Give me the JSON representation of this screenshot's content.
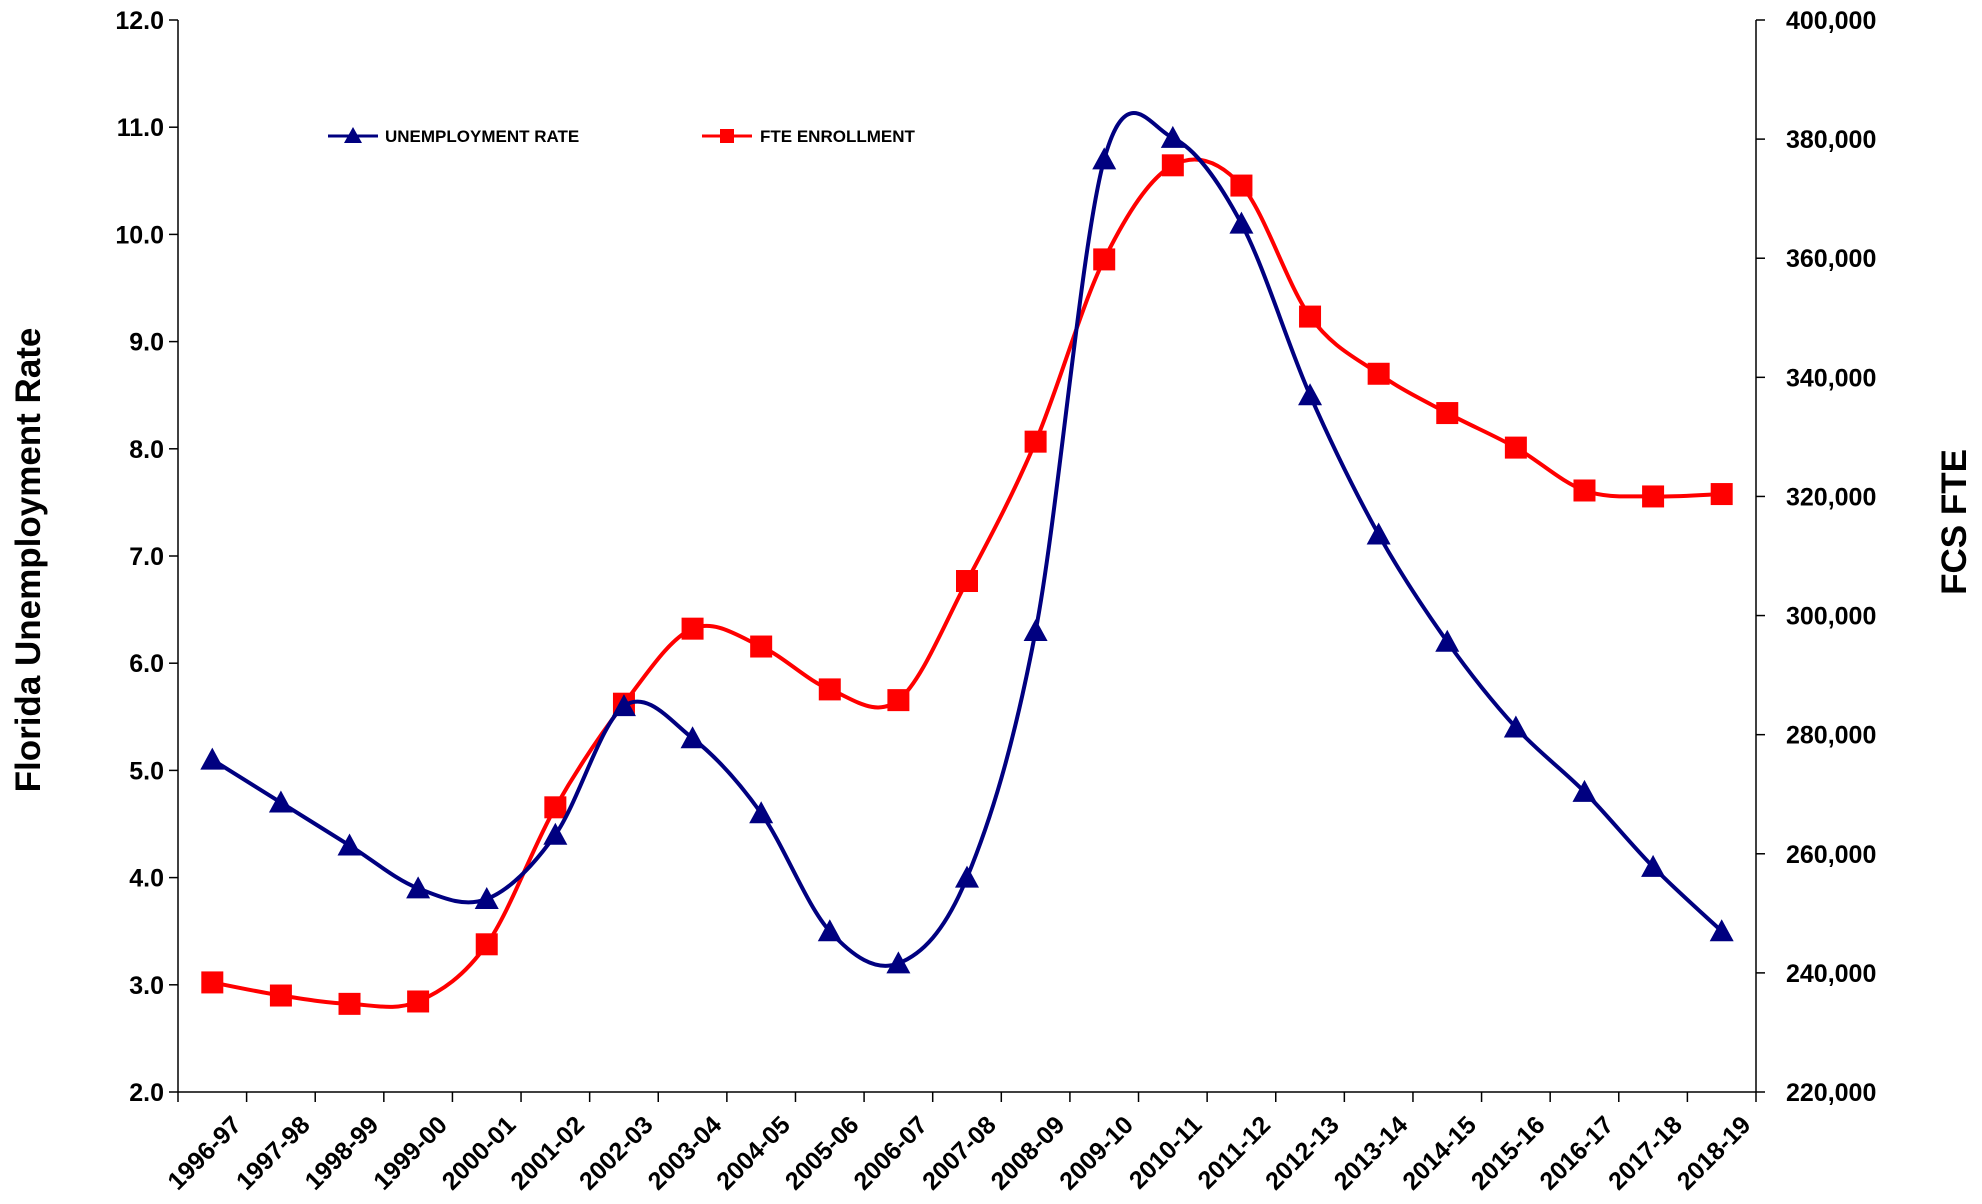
{
  "chart_data": {
    "type": "line",
    "categories": [
      "1996-97",
      "1997-98",
      "1998-99",
      "1999-00",
      "2000-01",
      "2001-02",
      "2002-03",
      "2003-04",
      "2004-05",
      "2005-06",
      "2006-07",
      "2007-08",
      "2008-09",
      "2009-10",
      "2010-11",
      "2011-12",
      "2012-13",
      "2013-14",
      "2014-15",
      "2015-16",
      "2016-17",
      "2017-18",
      "2018-19"
    ],
    "ylabel": "Florida Unemployment Rate",
    "y2label": "FCS  FTE",
    "ylim": [
      2.0,
      12.0
    ],
    "y2lim": [
      220000,
      400000
    ],
    "yticks": [
      "2.0",
      "3.0",
      "4.0",
      "5.0",
      "6.0",
      "7.0",
      "8.0",
      "9.0",
      "10.0",
      "11.0",
      "12.0"
    ],
    "y2ticks": [
      "220,000",
      "240,000",
      "260,000",
      "280,000",
      "300,000",
      "320,000",
      "340,000",
      "360,000",
      "380,000",
      "400,000"
    ],
    "legend_position": "top-left",
    "grid": false,
    "series": [
      {
        "name": "UNEMPLOYMENT RATE",
        "axis": "left",
        "color": "#000080",
        "marker": "triangle",
        "values": [
          5.1,
          4.7,
          4.3,
          3.9,
          3.8,
          4.4,
          5.6,
          5.3,
          4.6,
          3.5,
          3.2,
          4.0,
          6.3,
          10.7,
          10.9,
          10.1,
          8.5,
          7.2,
          6.2,
          5.4,
          4.8,
          4.1,
          3.5
        ]
      },
      {
        "name": "FTE ENROLLMENT",
        "axis": "right",
        "color": "#ff0000",
        "marker": "square",
        "values": [
          238400,
          236200,
          234800,
          235200,
          244800,
          267800,
          285200,
          297800,
          294800,
          287600,
          285800,
          305800,
          329200,
          359800,
          375600,
          372200,
          350200,
          340600,
          334000,
          328200,
          321000,
          320000,
          320400
        ]
      }
    ]
  }
}
